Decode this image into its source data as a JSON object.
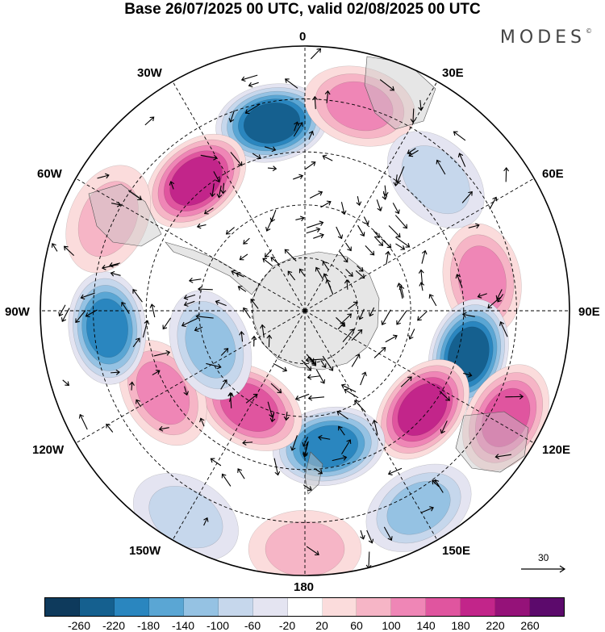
{
  "title": "Base 26/07/2025 00 UTC, valid 02/08/2025 00 UTC",
  "brand": "MODES",
  "brand_mark": "©",
  "longitude_labels": {
    "n0": "0",
    "e30": "30E",
    "e60": "60E",
    "e90": "90E",
    "e120": "120E",
    "e150": "150E",
    "s180": "180",
    "w150": "150W",
    "w120": "120W",
    "w90": "90W",
    "w60": "60W",
    "w30": "30W"
  },
  "reference_vector": {
    "value": "30"
  },
  "colorbar": {
    "colors": [
      "#0e3a5c",
      "#15608f",
      "#2a86bf",
      "#5aa6d4",
      "#95c2e3",
      "#c6d7ec",
      "#e4e4f1",
      "#ffffff",
      "#fbdcdc",
      "#f6b5c6",
      "#ef86b6",
      "#e0559f",
      "#c2258a",
      "#951279",
      "#5c0a6c"
    ],
    "ticks": [
      "-260",
      "-220",
      "-180",
      "-140",
      "-100",
      "-60",
      "-20",
      "20",
      "60",
      "100",
      "140",
      "180",
      "220",
      "260"
    ]
  },
  "anomaly_centers": [
    {
      "lon": -10,
      "r": 0.72,
      "value": -220
    },
    {
      "lon": -40,
      "r": 0.64,
      "value": 190
    },
    {
      "lon": 15,
      "r": 0.8,
      "value": 110
    },
    {
      "lon": 45,
      "r": 0.7,
      "value": -60
    },
    {
      "lon": 80,
      "r": 0.68,
      "value": 130
    },
    {
      "lon": 105,
      "r": 0.64,
      "value": -220
    },
    {
      "lon": 130,
      "r": 0.58,
      "value": 200
    },
    {
      "lon": 118,
      "r": 0.86,
      "value": 170
    },
    {
      "lon": 170,
      "r": 0.52,
      "value": -200
    },
    {
      "lon": 150,
      "r": 0.86,
      "value": -120
    },
    {
      "lon": -150,
      "r": 0.42,
      "value": 150
    },
    {
      "lon": -120,
      "r": 0.62,
      "value": 120
    },
    {
      "lon": -95,
      "r": 0.75,
      "value": -190
    },
    {
      "lon": -110,
      "r": 0.38,
      "value": -100
    },
    {
      "lon": -65,
      "r": 0.82,
      "value": 80
    },
    {
      "lon": -150,
      "r": 0.9,
      "value": -80
    },
    {
      "lon": 180,
      "r": 0.9,
      "value": 70
    }
  ]
}
